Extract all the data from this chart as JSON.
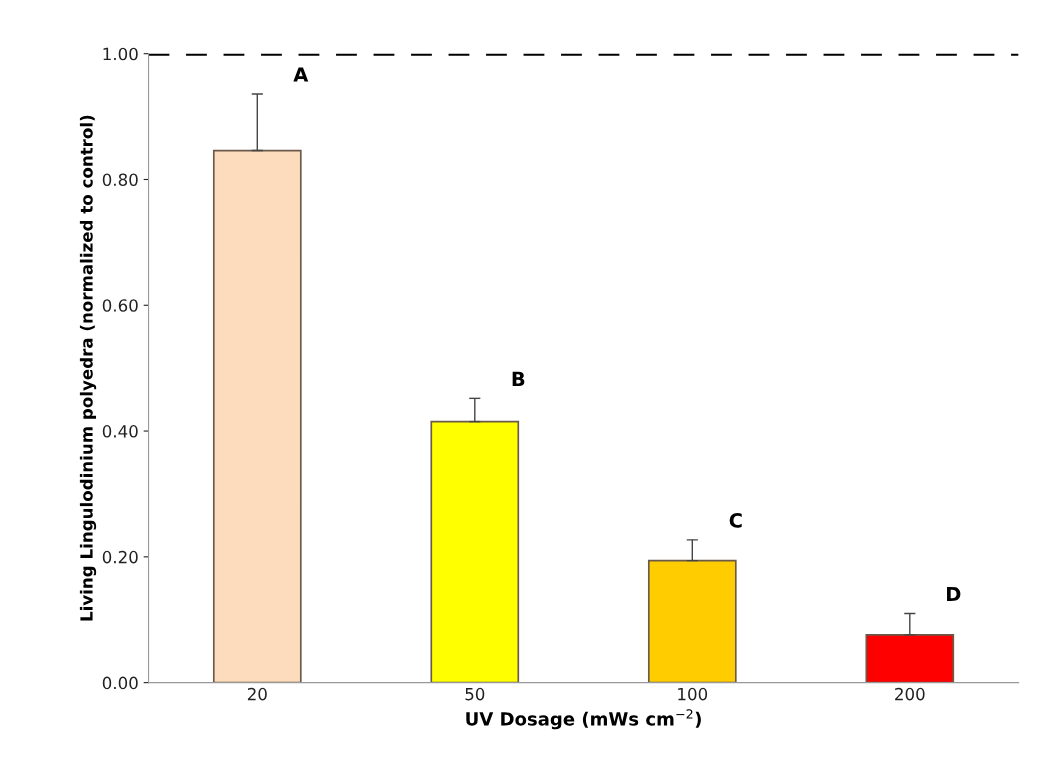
{
  "chart_data": {
    "type": "bar",
    "xlabel": "UV Dosage (mWs cm$^{−2}$)",
    "ylabel": "Living Lingulodinium polyedra (normalized to control)",
    "categories": [
      "20",
      "50",
      "100",
      "200"
    ],
    "values": [
      0.846,
      0.415,
      0.194,
      0.076
    ],
    "colors": [
      "#fcdcbc",
      "#ffff00",
      "#ffcc00",
      "#ff0000"
    ],
    "errors": [
      [
        0.846,
        0.936
      ],
      [
        0.415,
        0.452
      ],
      [
        0.194,
        0.227
      ],
      [
        0.076,
        0.11
      ]
    ],
    "ylim": [
      0,
      1
    ],
    "yticks": [
      {
        "value": 0,
        "label": "0.00"
      },
      {
        "value": 0.2,
        "label": "0.20"
      },
      {
        "value": 0.4,
        "label": "0.40"
      },
      {
        "value": 0.6,
        "label": "0.60"
      },
      {
        "value": 0.8,
        "label": "0.80"
      },
      {
        "value": 1,
        "label": "1.00"
      }
    ],
    "ref_lines": [
      {
        "axis": "y",
        "value": 1.0,
        "color": "#000000",
        "line_style": "dashed"
      }
    ],
    "annotations": [
      "A",
      "B",
      "C",
      "D"
    ],
    "grid": false,
    "legend": false
  }
}
